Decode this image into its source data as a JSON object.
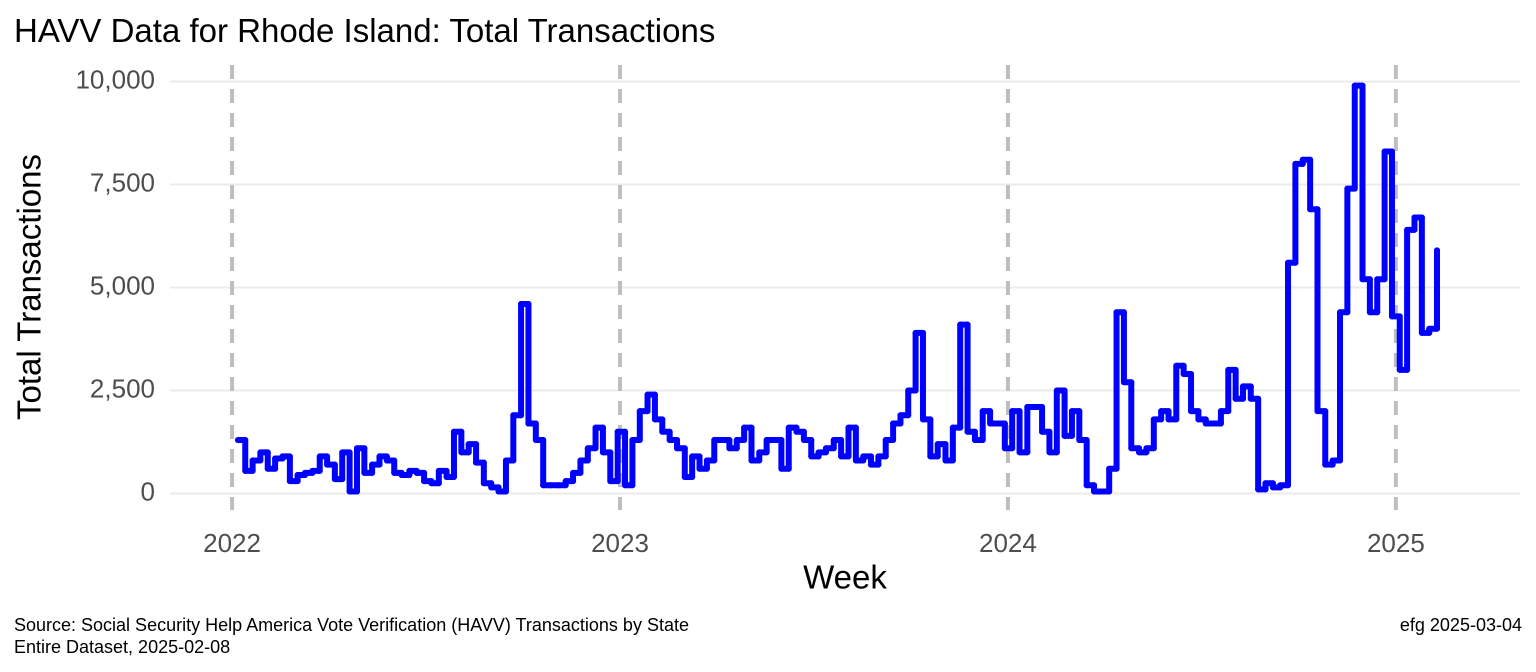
{
  "chart_data": {
    "type": "line",
    "step": true,
    "title": "HAVV Data for Rhode Island:  Total Transactions",
    "x_label": "Week",
    "y_label": "Total Transactions",
    "caption_left": [
      "Source:  Social Security Help America Vote Verification (HAVV) Transactions by State",
      "Entire Dataset, 2025-02-08"
    ],
    "caption_right": "efg 2025-03-04",
    "xlim": [
      2021.84,
      2025.32
    ],
    "xticks": [
      2022,
      2023,
      2024,
      2025
    ],
    "ylim": [
      -400,
      10400
    ],
    "yticks": [
      0,
      {
        "value": 2500,
        "label": "2,500"
      },
      {
        "value": 5000,
        "label": "5,000"
      },
      {
        "value": 7500,
        "label": "7,500"
      },
      {
        "value": 10000,
        "label": "10,000"
      }
    ],
    "grid": true,
    "x_grid_dashed": true,
    "x": [
      2022.015,
      2022.034,
      2022.053,
      2022.073,
      2022.092,
      2022.111,
      2022.13,
      2022.149,
      2022.169,
      2022.188,
      2022.207,
      2022.226,
      2022.245,
      2022.265,
      2022.284,
      2022.303,
      2022.322,
      2022.341,
      2022.361,
      2022.38,
      2022.399,
      2022.418,
      2022.437,
      2022.457,
      2022.476,
      2022.495,
      2022.514,
      2022.533,
      2022.553,
      2022.572,
      2022.591,
      2022.61,
      2022.629,
      2022.649,
      2022.668,
      2022.687,
      2022.706,
      2022.725,
      2022.745,
      2022.764,
      2022.783,
      2022.802,
      2022.821,
      2022.841,
      2022.86,
      2022.879,
      2022.898,
      2022.917,
      2022.937,
      2022.956,
      2022.975,
      2022.994,
      2023.013,
      2023.032,
      2023.051,
      2023.071,
      2023.09,
      2023.109,
      2023.128,
      2023.147,
      2023.167,
      2023.186,
      2023.205,
      2023.224,
      2023.243,
      2023.263,
      2023.282,
      2023.301,
      2023.32,
      2023.339,
      2023.359,
      2023.378,
      2023.397,
      2023.416,
      2023.435,
      2023.455,
      2023.474,
      2023.493,
      2023.512,
      2023.531,
      2023.551,
      2023.57,
      2023.589,
      2023.608,
      2023.627,
      2023.647,
      2023.666,
      2023.685,
      2023.704,
      2023.723,
      2023.743,
      2023.762,
      2023.781,
      2023.8,
      2023.819,
      2023.839,
      2023.858,
      2023.877,
      2023.896,
      2023.915,
      2023.935,
      2023.954,
      2023.973,
      2023.992,
      2024.011,
      2024.03,
      2024.05,
      2024.069,
      2024.088,
      2024.107,
      2024.126,
      2024.146,
      2024.165,
      2024.184,
      2024.203,
      2024.222,
      2024.242,
      2024.261,
      2024.28,
      2024.299,
      2024.318,
      2024.338,
      2024.357,
      2024.376,
      2024.395,
      2024.414,
      2024.434,
      2024.453,
      2024.472,
      2024.491,
      2024.51,
      2024.53,
      2024.549,
      2024.568,
      2024.587,
      2024.606,
      2024.626,
      2024.645,
      2024.664,
      2024.683,
      2024.702,
      2024.722,
      2024.741,
      2024.76,
      2024.779,
      2024.798,
      2024.818,
      2024.837,
      2024.856,
      2024.875,
      2024.894,
      2024.914,
      2024.933,
      2024.952,
      2024.971,
      2024.99,
      2025.01,
      2025.029,
      2025.048,
      2025.067,
      2025.086,
      2025.106
    ],
    "series": [
      {
        "name": "Total Transactions",
        "color": "#0000ff",
        "values": [
          1300,
          550,
          800,
          1000,
          600,
          850,
          900,
          300,
          450,
          500,
          550,
          900,
          700,
          350,
          1000,
          50,
          1100,
          500,
          700,
          900,
          800,
          500,
          450,
          550,
          500,
          300,
          250,
          550,
          400,
          1500,
          1000,
          1200,
          750,
          250,
          150,
          50,
          800,
          1900,
          4600,
          1700,
          1300,
          200,
          200,
          200,
          300,
          500,
          800,
          1100,
          1600,
          1000,
          300,
          1500,
          200,
          1300,
          2000,
          2400,
          1800,
          1500,
          1300,
          1100,
          400,
          900,
          600,
          800,
          1300,
          1300,
          1100,
          1300,
          1600,
          800,
          1000,
          1300,
          1300,
          600,
          1600,
          1500,
          1300,
          900,
          1000,
          1100,
          1300,
          900,
          1600,
          800,
          900,
          700,
          900,
          1300,
          1700,
          1900,
          2500,
          3900,
          1800,
          900,
          1200,
          800,
          1600,
          4100,
          1500,
          1300,
          2000,
          1700,
          1700,
          1100,
          2000,
          1000,
          2100,
          2100,
          1500,
          1000,
          2500,
          1400,
          2000,
          1300,
          200,
          50,
          50,
          600,
          4400,
          2700,
          1100,
          1000,
          1100,
          1800,
          2000,
          1800,
          3100,
          2900,
          2000,
          1800,
          1700,
          1700,
          2000,
          3000,
          2300,
          2600,
          2300,
          100,
          250,
          150,
          200,
          5600,
          8000,
          8100,
          6900,
          2000,
          700,
          800,
          4400,
          7400,
          9900,
          5200,
          4400,
          5200,
          8300,
          4300,
          3000,
          6400,
          6700,
          3900,
          4000,
          5900
        ]
      }
    ]
  }
}
